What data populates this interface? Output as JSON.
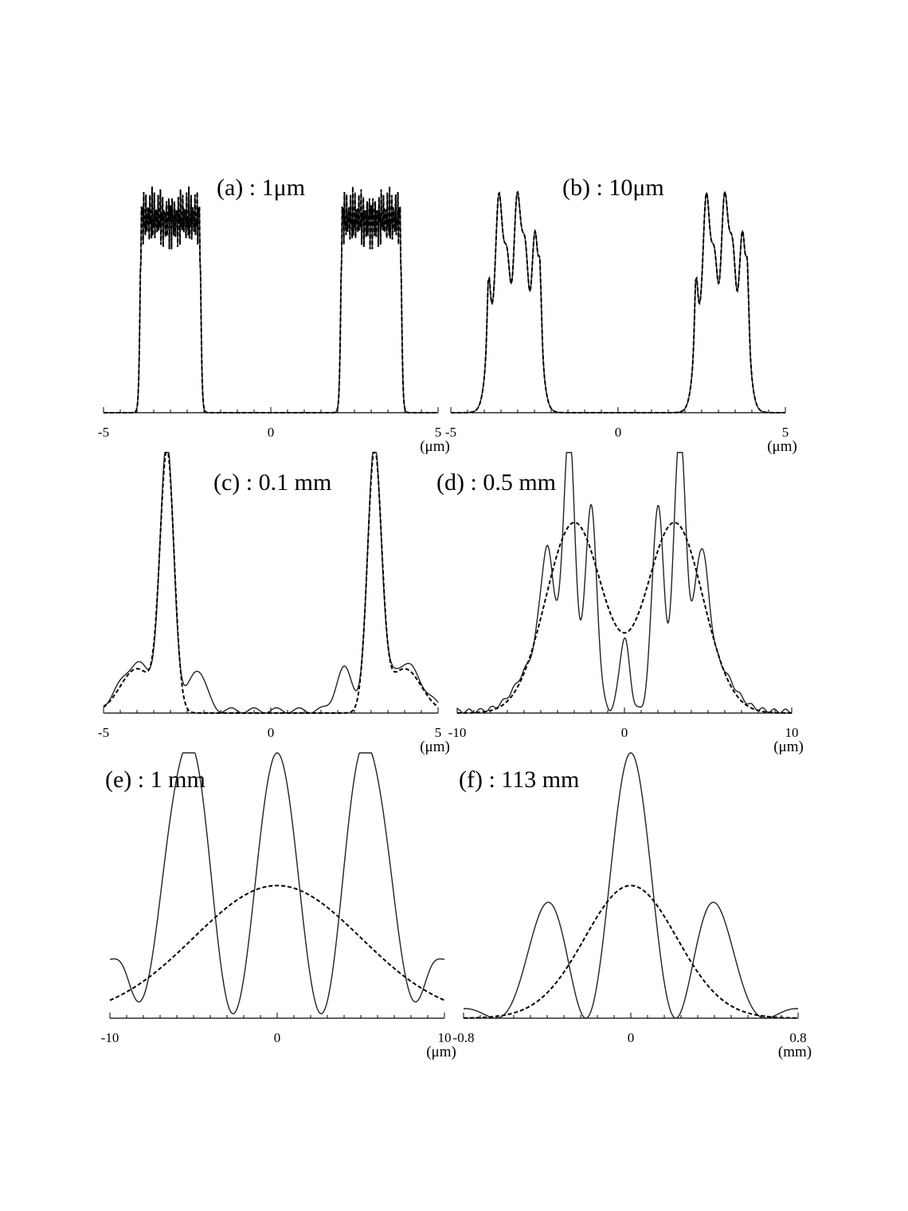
{
  "chart_data": [
    {
      "id": "a",
      "type": "line",
      "title": "(a) : 1μm",
      "xunit": "(μm)",
      "xlim": [
        -5,
        5
      ],
      "xticks": [
        "-5",
        "0",
        "5"
      ],
      "legend": "none",
      "grid": false,
      "series": [
        {
          "style": "solid",
          "model": "tophat",
          "params": {
            "centers": [
              -3.0,
              3.0
            ],
            "halfwidth": 0.9,
            "base": 0.72,
            "rim": 1.0,
            "ripple": "fast",
            "edge": 0.05
          }
        },
        {
          "style": "dashed",
          "model": "tophat",
          "params": {
            "centers": [
              -3.0,
              3.0
            ],
            "halfwidth": 0.9,
            "base": 0.72,
            "rim": 1.0,
            "ripple": "fast",
            "edge": 0.05
          }
        }
      ]
    },
    {
      "id": "b",
      "type": "line",
      "title": "(b) : 10μm",
      "xunit": "(μm)",
      "xlim": [
        -5,
        5
      ],
      "xticks": [
        "-5",
        "0",
        "5"
      ],
      "legend": "none",
      "grid": false,
      "series": [
        {
          "style": "solid",
          "model": "tophat",
          "params": {
            "centers": [
              -3.1,
              3.1
            ],
            "halfwidth": 0.78,
            "base": 0.65,
            "rim": 1.0,
            "ripple": "slow",
            "edge": 0.22
          }
        },
        {
          "style": "dashed",
          "model": "tophat",
          "params": {
            "centers": [
              -3.1,
              3.1
            ],
            "halfwidth": 0.78,
            "base": 0.65,
            "rim": 1.0,
            "ripple": "slow",
            "edge": 0.22
          }
        }
      ]
    },
    {
      "id": "c",
      "type": "line",
      "title": "(c) : 0.1 mm",
      "xunit": "(μm)",
      "xlim": [
        -5,
        5
      ],
      "xticks": [
        "-5",
        "0",
        "5"
      ],
      "legend": "none",
      "grid": false,
      "series": [
        {
          "style": "solid",
          "model": "peaks",
          "params": {
            "peaks": [
              [
                -3.1,
                1.0,
                0.2
              ],
              [
                3.1,
                1.0,
                0.2
              ]
            ],
            "shoulders": [
              [
                -4.0,
                0.18,
                0.5
              ],
              [
                -2.2,
                0.16,
                0.25
              ],
              [
                2.2,
                0.16,
                0.25
              ],
              [
                4.0,
                0.18,
                0.5
              ]
            ],
            "wiggle": 0.02
          }
        },
        {
          "style": "dashed",
          "model": "peaks",
          "params": {
            "peaks": [
              [
                -3.1,
                0.98,
                0.21
              ],
              [
                3.1,
                0.98,
                0.21
              ]
            ],
            "shoulders": [
              [
                -4.0,
                0.17,
                0.5
              ],
              [
                4.0,
                0.17,
                0.5
              ]
            ],
            "wiggle": 0.0
          }
        }
      ]
    },
    {
      "id": "d",
      "type": "line",
      "title": "(d) : 0.5 mm",
      "xunit": "(μm)",
      "xlim": [
        -10,
        10
      ],
      "xticks": [
        "-10",
        "0",
        "10"
      ],
      "legend": "none",
      "grid": false,
      "series": [
        {
          "style": "solid",
          "model": "peaks",
          "params": {
            "peaks": [
              [
                -3.3,
                1.0,
                0.35
              ],
              [
                -2.0,
                0.78,
                0.35
              ],
              [
                2.0,
                0.78,
                0.35
              ],
              [
                3.3,
                1.0,
                0.35
              ],
              [
                -4.6,
                0.42,
                0.4
              ],
              [
                4.6,
                0.42,
                0.4
              ],
              [
                0.0,
                0.28,
                0.3
              ]
            ],
            "shoulders": [
              [
                -5.0,
                0.22,
                1.2
              ],
              [
                5.0,
                0.22,
                1.2
              ]
            ],
            "wiggle": 0.015
          }
        },
        {
          "style": "dashed",
          "model": "peaks",
          "params": {
            "peaks": [
              [
                -3.0,
                0.73,
                1.7
              ],
              [
                3.0,
                0.73,
                1.7
              ]
            ],
            "shoulders": [],
            "wiggle": 0.0
          }
        }
      ]
    },
    {
      "id": "e",
      "type": "line",
      "title": "(e) : 1 mm",
      "xunit": "(μm)",
      "xlim": [
        -10,
        10
      ],
      "xticks": [
        "-10",
        "0",
        "10"
      ],
      "legend": "none",
      "grid": false,
      "series": [
        {
          "style": "solid",
          "model": "fringes",
          "params": {
            "envelope": 6.0,
            "period": 5.4,
            "side": [
              [
                -6.5,
                0.3,
                0.9
              ],
              [
                -4.8,
                0.28,
                0.9
              ],
              [
                4.8,
                0.28,
                0.9
              ],
              [
                6.5,
                0.3,
                0.9
              ],
              [
                -9.2,
                0.08,
                0.5
              ],
              [
                9.2,
                0.08,
                0.5
              ]
            ]
          }
        },
        {
          "style": "dashed",
          "model": "gauss",
          "params": {
            "height": 0.5,
            "sigma": 5.0
          }
        }
      ]
    },
    {
      "id": "f",
      "type": "line",
      "title": "(f) : 113 mm",
      "xunit": "(mm)",
      "xlim": [
        -0.8,
        0.8
      ],
      "xticks": [
        "-0.8",
        "0",
        "0.8"
      ],
      "legend": "none",
      "grid": false,
      "series": [
        {
          "style": "solid",
          "model": "fringes",
          "params": {
            "envelope": 0.32,
            "period": 0.43,
            "side": []
          }
        },
        {
          "style": "dashed",
          "model": "gauss",
          "params": {
            "height": 0.5,
            "sigma": 0.22
          }
        }
      ]
    }
  ]
}
